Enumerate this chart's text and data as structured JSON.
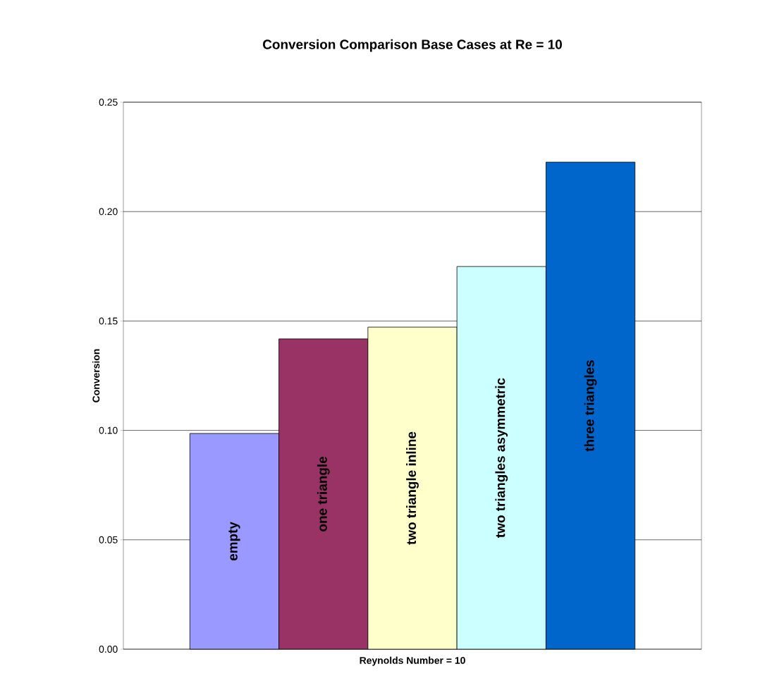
{
  "chart_data": {
    "type": "bar",
    "title": "Conversion Comparison Base Cases at Re = 10",
    "xlabel": "Reynolds Number = 10",
    "ylabel": "Conversion",
    "categories": [
      null
    ],
    "series": [
      {
        "name": "empty",
        "color": "#9999ff",
        "values": [
          0.0986
        ]
      },
      {
        "name": "one triangle",
        "color": "#993366",
        "values": [
          0.1418
        ]
      },
      {
        "name": "two triangle inline",
        "color": "#ffffcc",
        "values": [
          0.1472
        ]
      },
      {
        "name": "two triangles asymmetric",
        "color": "#ccffff",
        "values": [
          0.1749
        ]
      },
      {
        "name": "three triangles",
        "color": "#0066cc",
        "values": [
          0.2226
        ]
      }
    ],
    "ylim": [
      0,
      0.25
    ],
    "yticks": [
      {
        "value": 0,
        "label": "0.00"
      },
      {
        "value": 0.05,
        "label": "0.05"
      },
      {
        "value": 0.1,
        "label": "0.10"
      },
      {
        "value": 0.15,
        "label": "0.15"
      },
      {
        "value": 0.2,
        "label": "0.20"
      },
      {
        "value": 0.25,
        "label": "0.25"
      }
    ],
    "grid": "y"
  }
}
